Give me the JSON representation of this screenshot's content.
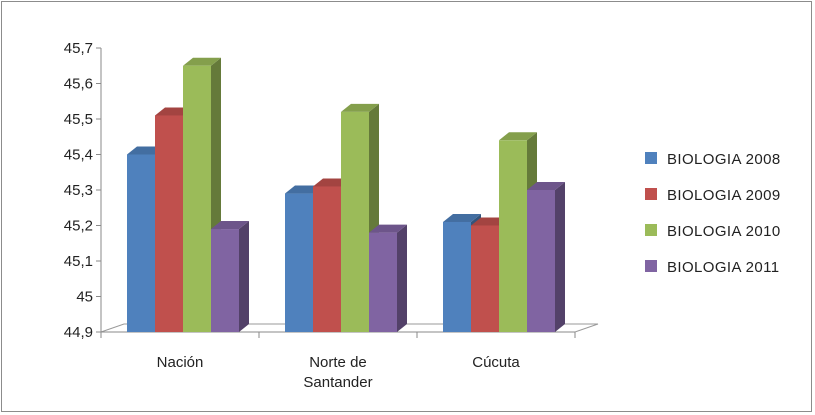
{
  "chart_data": {
    "type": "bar",
    "style": "3d-clustered-column",
    "categories": [
      [
        "Nación"
      ],
      [
        "Norte de",
        "Santander"
      ],
      [
        "Cúcuta"
      ]
    ],
    "series": [
      {
        "name": "BIOLOGIA 2008",
        "color": "#4f81bd",
        "values": [
          45.4,
          45.29,
          45.21
        ]
      },
      {
        "name": "BIOLOGIA 2009",
        "color": "#c0504d",
        "values": [
          45.51,
          45.31,
          45.2
        ]
      },
      {
        "name": "BIOLOGIA 2010",
        "color": "#9bbb59",
        "values": [
          45.65,
          45.52,
          45.44
        ]
      },
      {
        "name": "BIOLOGIA 2011",
        "color": "#8064a2",
        "values": [
          45.19,
          45.18,
          45.3
        ]
      }
    ],
    "y_ticks": [
      "44,9",
      "45",
      "45,1",
      "45,2",
      "45,3",
      "45,4",
      "45,5",
      "45,6",
      "45,7"
    ],
    "ylim": [
      44.9,
      45.7
    ],
    "grid": false,
    "legend_position": "right",
    "title": "",
    "xlabel": "",
    "ylabel": ""
  }
}
